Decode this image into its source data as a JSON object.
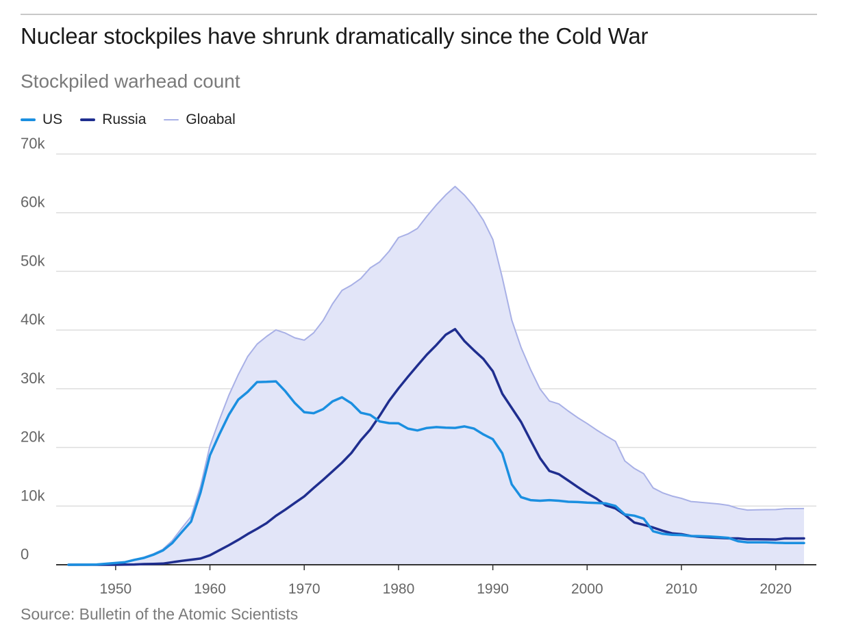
{
  "title": "Nuclear stockpiles have shrunk dramatically since the Cold War",
  "subtitle": "Stockpiled warhead count",
  "source": "Source: Bulletin of the Atomic Scientists",
  "colors": {
    "us": "#1b8fe0",
    "russia": "#1f2e8f",
    "global_line": "#a8b0e6",
    "global_fill": "#e2e5f8",
    "grid": "#dddddd",
    "axis": "#333333"
  },
  "chart_data": {
    "type": "line",
    "ylim": [
      0,
      70000
    ],
    "xlim": [
      1945,
      2023
    ],
    "y_ticks": [
      0,
      10000,
      20000,
      30000,
      40000,
      50000,
      60000,
      70000
    ],
    "y_tick_labels": [
      "0",
      "10k",
      "20k",
      "30k",
      "40k",
      "50k",
      "60k",
      "70k"
    ],
    "x_ticks": [
      1950,
      1960,
      1970,
      1980,
      1990,
      2000,
      2010,
      2020
    ],
    "x_tick_labels": [
      "1950",
      "1960",
      "1970",
      "1980",
      "1990",
      "2000",
      "2010",
      "2020"
    ],
    "grid": true,
    "legend_position": "top-left",
    "x": [
      1945,
      1946,
      1947,
      1948,
      1949,
      1950,
      1951,
      1952,
      1953,
      1954,
      1955,
      1956,
      1957,
      1958,
      1959,
      1960,
      1961,
      1962,
      1963,
      1964,
      1965,
      1966,
      1967,
      1968,
      1969,
      1970,
      1971,
      1972,
      1973,
      1974,
      1975,
      1976,
      1977,
      1978,
      1979,
      1980,
      1981,
      1982,
      1983,
      1984,
      1985,
      1986,
      1987,
      1988,
      1989,
      1990,
      1991,
      1992,
      1993,
      1994,
      1995,
      1996,
      1997,
      1998,
      1999,
      2000,
      2001,
      2002,
      2003,
      2004,
      2005,
      2006,
      2007,
      2008,
      2009,
      2010,
      2011,
      2012,
      2013,
      2014,
      2015,
      2016,
      2017,
      2018,
      2019,
      2020,
      2021,
      2022,
      2023
    ],
    "series": [
      {
        "name": "US",
        "key": "us",
        "values": [
          2,
          9,
          13,
          50,
          170,
          299,
          438,
          841,
          1169,
          1703,
          2422,
          3692,
          5543,
          7345,
          12298,
          18638,
          22229,
          25540,
          28133,
          29463,
          31139,
          31175,
          31255,
          29561,
          27552,
          26008,
          25830,
          26516,
          27835,
          28537,
          27519,
          25914,
          25542,
          24418,
          24138,
          24104,
          23208,
          22886,
          23305,
          23459,
          23368,
          23317,
          23575,
          23205,
          22217,
          21392,
          19008,
          13708,
          11511,
          11008,
          10904,
          11011,
          10903,
          10732,
          10685,
          10577,
          10526,
          10457,
          10027,
          8570,
          8360,
          7853,
          5709,
          5273,
          5113,
          5066,
          4897,
          4881,
          4804,
          4717,
          4571,
          4018,
          3822,
          3822,
          3822,
          3750,
          3708,
          3708,
          3708
        ]
      },
      {
        "name": "Russia",
        "key": "russia",
        "values": [
          0,
          0,
          0,
          0,
          1,
          5,
          25,
          50,
          120,
          150,
          200,
          426,
          660,
          869,
          1060,
          1605,
          2471,
          3322,
          4238,
          5221,
          6129,
          7089,
          8339,
          9399,
          10538,
          11643,
          13092,
          14478,
          15915,
          17385,
          19055,
          21205,
          23044,
          25393,
          27935,
          30062,
          32049,
          33952,
          35804,
          37431,
          39197,
          40159,
          38107,
          36538,
          35078,
          32980,
          29154,
          26734,
          24324,
          21215,
          18179,
          15979,
          15431,
          14349,
          13252,
          12188,
          11264,
          10100,
          9600,
          8500,
          7200,
          6800,
          6346,
          5800,
          5350,
          5200,
          4900,
          4750,
          4650,
          4580,
          4500,
          4490,
          4350,
          4350,
          4330,
          4310,
          4495,
          4477,
          4489
        ]
      },
      {
        "name": "Gloabal",
        "key": "global",
        "values": [
          2,
          9,
          13,
          50,
          171,
          304,
          463,
          891,
          1289,
          1853,
          2622,
          4118,
          6203,
          8214,
          13358,
          20243,
          24700,
          28862,
          32371,
          35484,
          37598,
          38904,
          40034,
          39484,
          38670,
          38281,
          39528,
          41632,
          44446,
          46751,
          47650,
          48775,
          50583,
          51610,
          53428,
          55768,
          56382,
          57324,
          59380,
          61298,
          63018,
          64473,
          62987,
          61089,
          58704,
          55436,
          48937,
          41719,
          37018,
          33271,
          29969,
          27908,
          27404,
          26192,
          25069,
          24066,
          22976,
          21984,
          21040,
          17691,
          16413,
          15522,
          13094,
          12256,
          11715,
          11314,
          10783,
          10651,
          10499,
          10355,
          10123,
          9597,
          9319,
          9367,
          9395,
          9405,
          9554,
          9566,
          9579
        ]
      }
    ]
  }
}
